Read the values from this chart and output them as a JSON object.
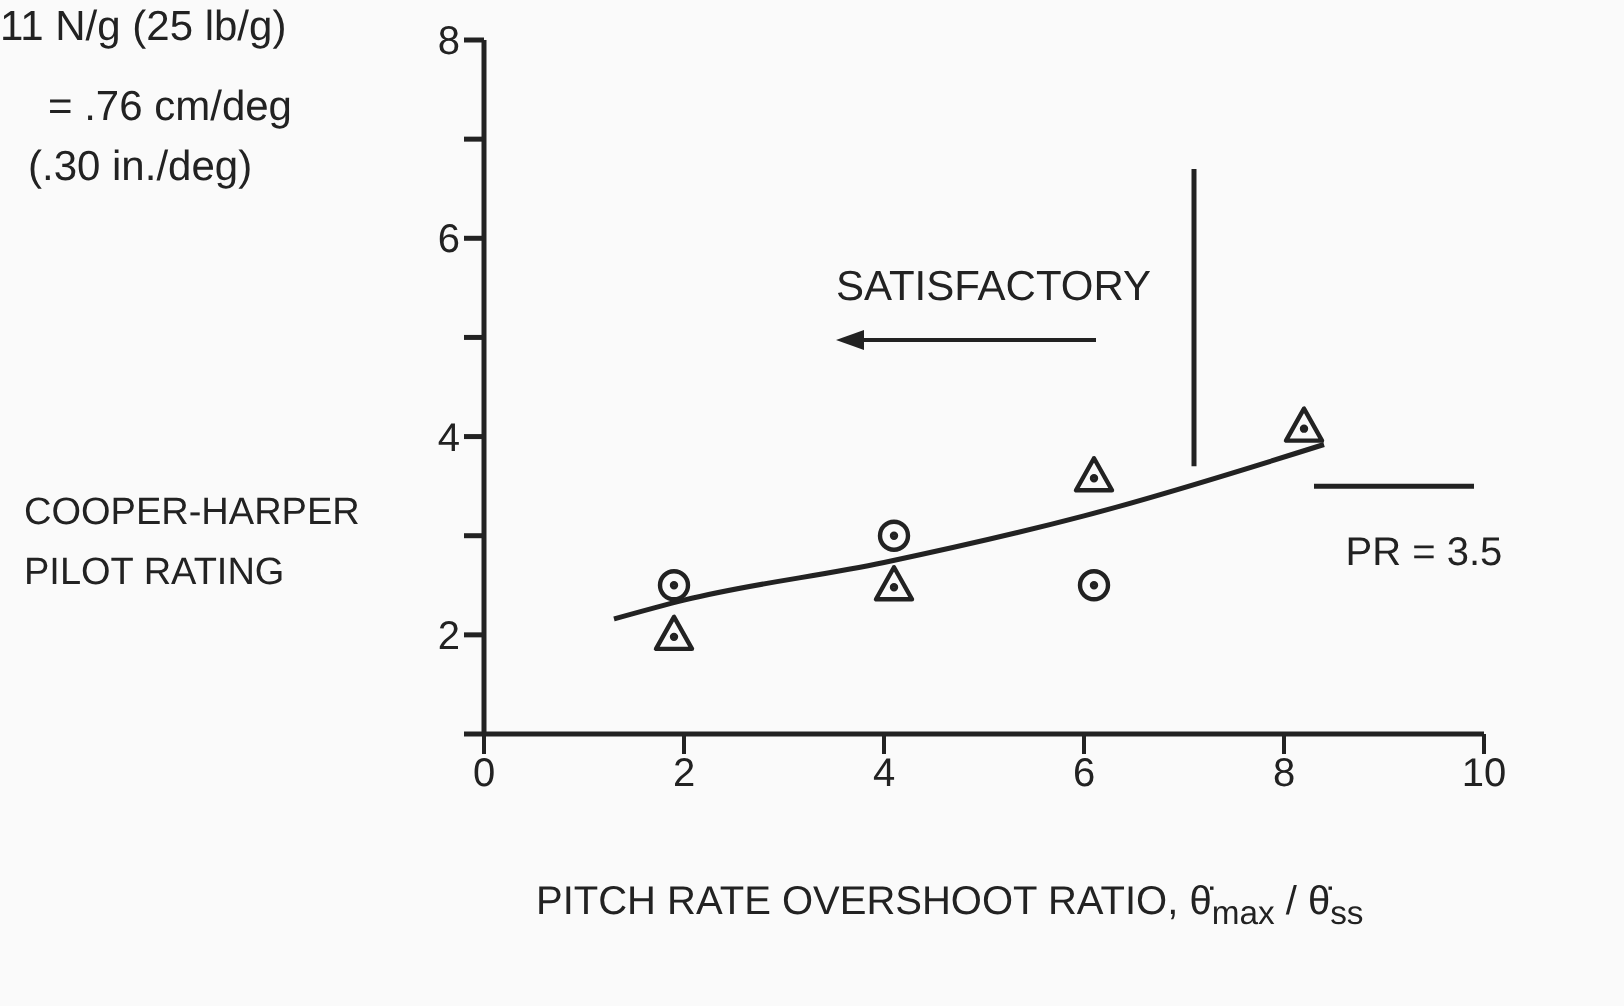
{
  "chart_data": {
    "type": "scatter",
    "xlabel": "PITCH RATE OVERSHOOT RATIO,  θ̇$_{max}$ / θ̇$_{ss}$",
    "ylabel": "COOPER-HARPER PILOT RATING",
    "xlim": [
      0,
      10
    ],
    "xticks": [
      0,
      2,
      4,
      6,
      8,
      10
    ],
    "ylim": [
      1,
      8
    ],
    "yticks": [
      {
        "value": 1,
        "label": null
      },
      2,
      {
        "value": 3,
        "label": null
      },
      4,
      {
        "value": 5,
        "label": null
      },
      6,
      {
        "value": 7,
        "label": null
      },
      8
    ],
    "marker": "circle",
    "series": [
      {
        "color": "#222222",
        "x": [
          1.9,
          4.1,
          6.1
        ],
        "values": [
          2.5,
          3.0,
          2.5
        ]
      },
      {
        "marker": "triangle",
        "color": "#222222",
        "x": [
          1.9,
          4.1,
          6.1,
          8.2
        ],
        "values": [
          2.0,
          2.5,
          3.6,
          4.1
        ]
      },
      {
        "type": "line",
        "marker": "none",
        "color": "#222222",
        "x": [
          1.3,
          2,
          4,
          6,
          8.4
        ],
        "values": [
          2.16,
          2.35,
          2.73,
          3.2,
          3.92
        ]
      },
      {
        "type": "line",
        "marker": "none",
        "color": "#222222",
        "x": [
          7.1,
          7.1
        ],
        "values": [
          3.7,
          6.7
        ]
      },
      {
        "type": "line",
        "marker": "none",
        "color": "#222222",
        "x": [
          8.3,
          9.9
        ],
        "values": [
          3.5,
          3.5
        ]
      }
    ],
    "annotations": [
      "11 N/g (25 lb/g)",
      "= .76 cm/deg",
      "(.30 in./deg)",
      "SATISFACTORY",
      {
        "text": "PR = 3.5",
        "x": 9.4,
        "y": 3.5
      }
    ]
  }
}
